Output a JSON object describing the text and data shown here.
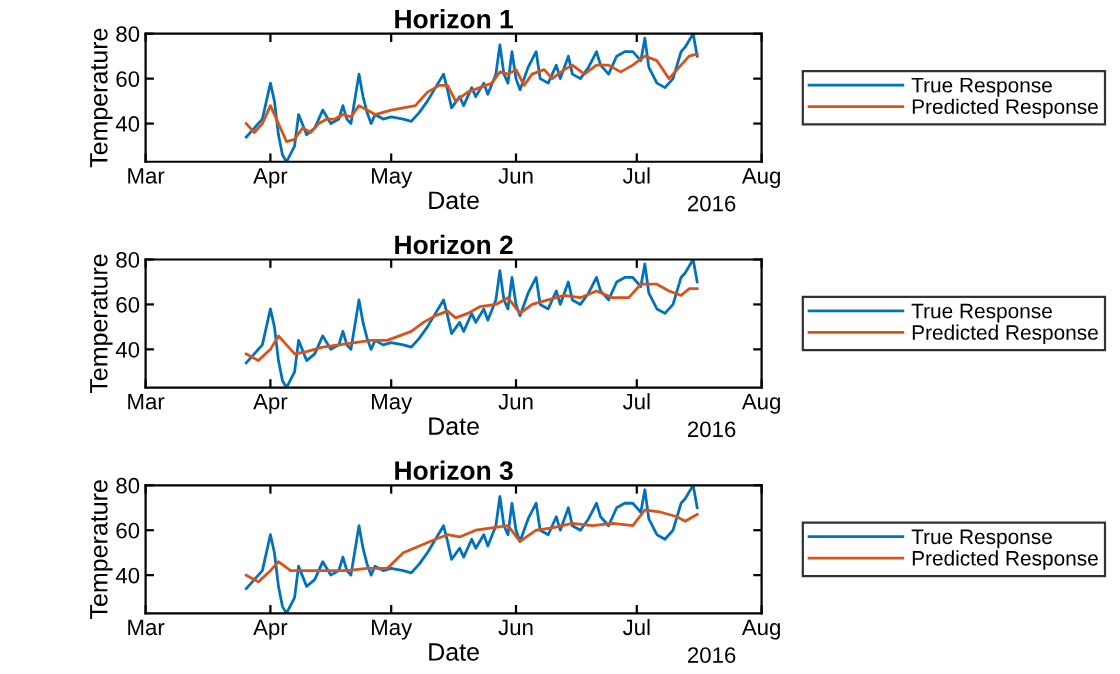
{
  "chart_data": [
    {
      "type": "line",
      "title": "Horizon 1",
      "xlabel": "Date",
      "ylabel": "Temperature",
      "annotations": [
        "2016"
      ],
      "xlim": [
        "2016-03-01",
        "2016-08-01"
      ],
      "xticks": [
        {
          "value": "2016-03-01",
          "label": "Mar"
        },
        {
          "value": "2016-04-01",
          "label": "Apr"
        },
        {
          "value": "2016-05-01",
          "label": "May"
        },
        {
          "value": "2016-06-01",
          "label": "Jun"
        },
        {
          "value": "2016-07-01",
          "label": "Jul"
        },
        {
          "value": "2016-08-01",
          "label": "Aug"
        }
      ],
      "ylim": [
        23,
        80
      ],
      "yticks": [
        40,
        60,
        80
      ],
      "grid": false,
      "legend": "right",
      "series": [
        {
          "name": "True Response",
          "color": "#0072bd",
          "x": [
            "2016-03-26",
            "2016-03-28",
            "2016-03-30",
            "2016-04-01",
            "2016-04-02",
            "2016-04-03",
            "2016-04-04",
            "2016-04-05",
            "2016-04-07",
            "2016-04-08",
            "2016-04-10",
            "2016-04-12",
            "2016-04-14",
            "2016-04-16",
            "2016-04-18",
            "2016-04-19",
            "2016-04-20",
            "2016-04-21",
            "2016-04-23",
            "2016-04-24",
            "2016-04-25",
            "2016-04-26",
            "2016-04-27",
            "2016-04-29",
            "2016-05-01",
            "2016-05-04",
            "2016-05-06",
            "2016-05-08",
            "2016-05-10",
            "2016-05-12",
            "2016-05-14",
            "2016-05-15",
            "2016-05-16",
            "2016-05-18",
            "2016-05-19",
            "2016-05-21",
            "2016-05-22",
            "2016-05-24",
            "2016-05-25",
            "2016-05-27",
            "2016-05-28",
            "2016-05-29",
            "2016-05-30",
            "2016-05-31",
            "2016-06-01",
            "2016-06-02",
            "2016-06-04",
            "2016-06-06",
            "2016-06-07",
            "2016-06-09",
            "2016-06-11",
            "2016-06-12",
            "2016-06-14",
            "2016-06-15",
            "2016-06-17",
            "2016-06-19",
            "2016-06-21",
            "2016-06-22",
            "2016-06-24",
            "2016-06-26",
            "2016-06-28",
            "2016-06-30",
            "2016-07-02",
            "2016-07-03",
            "2016-07-04",
            "2016-07-06",
            "2016-07-08",
            "2016-07-10",
            "2016-07-12",
            "2016-07-13",
            "2016-07-15",
            "2016-07-16"
          ],
          "values": [
            34,
            38,
            42,
            58,
            50,
            35,
            26,
            23,
            30,
            44,
            35,
            38,
            46,
            40,
            42,
            48,
            42,
            40,
            62,
            52,
            45,
            40,
            44,
            42,
            43,
            42,
            41,
            45,
            50,
            56,
            62,
            55,
            47,
            52,
            48,
            56,
            52,
            58,
            53,
            62,
            75,
            62,
            58,
            72,
            60,
            55,
            65,
            72,
            60,
            58,
            66,
            60,
            70,
            62,
            60,
            65,
            72,
            66,
            62,
            70,
            72,
            72,
            68,
            78,
            65,
            58,
            56,
            60,
            72,
            74,
            80,
            70
          ]
        },
        {
          "name": "Predicted Response",
          "color": "#d95319",
          "x": [
            "2016-03-26",
            "2016-03-28",
            "2016-03-30",
            "2016-04-01",
            "2016-04-03",
            "2016-04-05",
            "2016-04-07",
            "2016-04-09",
            "2016-04-11",
            "2016-04-13",
            "2016-04-15",
            "2016-04-17",
            "2016-04-19",
            "2016-04-21",
            "2016-04-23",
            "2016-04-25",
            "2016-04-27",
            "2016-04-29",
            "2016-05-01",
            "2016-05-04",
            "2016-05-07",
            "2016-05-10",
            "2016-05-13",
            "2016-05-15",
            "2016-05-17",
            "2016-05-20",
            "2016-05-23",
            "2016-05-26",
            "2016-05-28",
            "2016-05-30",
            "2016-06-01",
            "2016-06-03",
            "2016-06-05",
            "2016-06-08",
            "2016-06-10",
            "2016-06-13",
            "2016-06-15",
            "2016-06-18",
            "2016-06-21",
            "2016-06-24",
            "2016-06-27",
            "2016-06-30",
            "2016-07-03",
            "2016-07-06",
            "2016-07-09",
            "2016-07-12",
            "2016-07-14",
            "2016-07-16"
          ],
          "values": [
            40,
            36,
            40,
            48,
            40,
            32,
            33,
            38,
            36,
            40,
            42,
            42,
            44,
            43,
            48,
            46,
            44,
            45,
            46,
            47,
            48,
            54,
            57,
            57,
            50,
            54,
            56,
            58,
            63,
            62,
            64,
            57,
            62,
            64,
            60,
            64,
            66,
            62,
            66,
            66,
            63,
            66,
            70,
            68,
            60,
            66,
            70,
            71
          ]
        }
      ]
    },
    {
      "type": "line",
      "title": "Horizon 2",
      "xlabel": "Date",
      "ylabel": "Temperature",
      "annotations": [
        "2016"
      ],
      "xlim": [
        "2016-03-01",
        "2016-08-01"
      ],
      "xticks": [
        {
          "value": "2016-03-01",
          "label": "Mar"
        },
        {
          "value": "2016-04-01",
          "label": "Apr"
        },
        {
          "value": "2016-05-01",
          "label": "May"
        },
        {
          "value": "2016-06-01",
          "label": "Jun"
        },
        {
          "value": "2016-07-01",
          "label": "Jul"
        },
        {
          "value": "2016-08-01",
          "label": "Aug"
        }
      ],
      "ylim": [
        23,
        80
      ],
      "yticks": [
        40,
        60,
        80
      ],
      "grid": false,
      "legend": "right",
      "series": [
        {
          "name": "True Response",
          "color": "#0072bd",
          "x": [
            "2016-03-26",
            "2016-03-28",
            "2016-03-30",
            "2016-04-01",
            "2016-04-02",
            "2016-04-03",
            "2016-04-04",
            "2016-04-05",
            "2016-04-07",
            "2016-04-08",
            "2016-04-10",
            "2016-04-12",
            "2016-04-14",
            "2016-04-16",
            "2016-04-18",
            "2016-04-19",
            "2016-04-20",
            "2016-04-21",
            "2016-04-23",
            "2016-04-24",
            "2016-04-25",
            "2016-04-26",
            "2016-04-27",
            "2016-04-29",
            "2016-05-01",
            "2016-05-04",
            "2016-05-06",
            "2016-05-08",
            "2016-05-10",
            "2016-05-12",
            "2016-05-14",
            "2016-05-15",
            "2016-05-16",
            "2016-05-18",
            "2016-05-19",
            "2016-05-21",
            "2016-05-22",
            "2016-05-24",
            "2016-05-25",
            "2016-05-27",
            "2016-05-28",
            "2016-05-29",
            "2016-05-30",
            "2016-05-31",
            "2016-06-01",
            "2016-06-02",
            "2016-06-04",
            "2016-06-06",
            "2016-06-07",
            "2016-06-09",
            "2016-06-11",
            "2016-06-12",
            "2016-06-14",
            "2016-06-15",
            "2016-06-17",
            "2016-06-19",
            "2016-06-21",
            "2016-06-22",
            "2016-06-24",
            "2016-06-26",
            "2016-06-28",
            "2016-06-30",
            "2016-07-02",
            "2016-07-03",
            "2016-07-04",
            "2016-07-06",
            "2016-07-08",
            "2016-07-10",
            "2016-07-12",
            "2016-07-13",
            "2016-07-15",
            "2016-07-16"
          ],
          "values": [
            34,
            38,
            42,
            58,
            50,
            35,
            26,
            23,
            30,
            44,
            35,
            38,
            46,
            40,
            42,
            48,
            42,
            40,
            62,
            52,
            45,
            40,
            44,
            42,
            43,
            42,
            41,
            45,
            50,
            56,
            62,
            55,
            47,
            52,
            48,
            56,
            52,
            58,
            53,
            62,
            75,
            62,
            58,
            72,
            60,
            55,
            65,
            72,
            60,
            58,
            66,
            60,
            70,
            62,
            60,
            65,
            72,
            66,
            62,
            70,
            72,
            72,
            68,
            78,
            65,
            58,
            56,
            60,
            72,
            74,
            80,
            70
          ]
        },
        {
          "name": "Predicted Response",
          "color": "#d95319",
          "x": [
            "2016-03-26",
            "2016-03-29",
            "2016-04-01",
            "2016-04-03",
            "2016-04-05",
            "2016-04-07",
            "2016-04-10",
            "2016-04-14",
            "2016-04-18",
            "2016-04-22",
            "2016-04-26",
            "2016-04-30",
            "2016-05-03",
            "2016-05-06",
            "2016-05-09",
            "2016-05-12",
            "2016-05-15",
            "2016-05-17",
            "2016-05-20",
            "2016-05-23",
            "2016-05-27",
            "2016-05-30",
            "2016-06-02",
            "2016-06-05",
            "2016-06-09",
            "2016-06-13",
            "2016-06-17",
            "2016-06-21",
            "2016-06-25",
            "2016-06-29",
            "2016-07-02",
            "2016-07-06",
            "2016-07-09",
            "2016-07-12",
            "2016-07-14",
            "2016-07-16"
          ],
          "values": [
            38,
            35,
            40,
            46,
            42,
            38,
            39,
            41,
            42,
            43,
            44,
            44,
            46,
            48,
            52,
            55,
            57,
            54,
            56,
            59,
            60,
            63,
            56,
            60,
            62,
            64,
            63,
            66,
            63,
            63,
            69,
            69,
            66,
            64,
            67,
            67
          ]
        }
      ]
    },
    {
      "type": "line",
      "title": "Horizon 3",
      "xlabel": "Date",
      "ylabel": "Temperature",
      "annotations": [
        "2016"
      ],
      "xlim": [
        "2016-03-01",
        "2016-08-01"
      ],
      "xticks": [
        {
          "value": "2016-03-01",
          "label": "Mar"
        },
        {
          "value": "2016-04-01",
          "label": "Apr"
        },
        {
          "value": "2016-05-01",
          "label": "May"
        },
        {
          "value": "2016-06-01",
          "label": "Jun"
        },
        {
          "value": "2016-07-01",
          "label": "Jul"
        },
        {
          "value": "2016-08-01",
          "label": "Aug"
        }
      ],
      "ylim": [
        23,
        80
      ],
      "yticks": [
        40,
        60,
        80
      ],
      "grid": false,
      "legend": "right",
      "series": [
        {
          "name": "True Response",
          "color": "#0072bd",
          "x": [
            "2016-03-26",
            "2016-03-28",
            "2016-03-30",
            "2016-04-01",
            "2016-04-02",
            "2016-04-03",
            "2016-04-04",
            "2016-04-05",
            "2016-04-07",
            "2016-04-08",
            "2016-04-10",
            "2016-04-12",
            "2016-04-14",
            "2016-04-16",
            "2016-04-18",
            "2016-04-19",
            "2016-04-20",
            "2016-04-21",
            "2016-04-23",
            "2016-04-24",
            "2016-04-25",
            "2016-04-26",
            "2016-04-27",
            "2016-04-29",
            "2016-05-01",
            "2016-05-04",
            "2016-05-06",
            "2016-05-08",
            "2016-05-10",
            "2016-05-12",
            "2016-05-14",
            "2016-05-15",
            "2016-05-16",
            "2016-05-18",
            "2016-05-19",
            "2016-05-21",
            "2016-05-22",
            "2016-05-24",
            "2016-05-25",
            "2016-05-27",
            "2016-05-28",
            "2016-05-29",
            "2016-05-30",
            "2016-05-31",
            "2016-06-01",
            "2016-06-02",
            "2016-06-04",
            "2016-06-06",
            "2016-06-07",
            "2016-06-09",
            "2016-06-11",
            "2016-06-12",
            "2016-06-14",
            "2016-06-15",
            "2016-06-17",
            "2016-06-19",
            "2016-06-21",
            "2016-06-22",
            "2016-06-24",
            "2016-06-26",
            "2016-06-28",
            "2016-06-30",
            "2016-07-02",
            "2016-07-03",
            "2016-07-04",
            "2016-07-06",
            "2016-07-08",
            "2016-07-10",
            "2016-07-12",
            "2016-07-13",
            "2016-07-15",
            "2016-07-16"
          ],
          "values": [
            34,
            38,
            42,
            58,
            50,
            35,
            26,
            23,
            30,
            44,
            35,
            38,
            46,
            40,
            42,
            48,
            42,
            40,
            62,
            52,
            45,
            40,
            44,
            42,
            43,
            42,
            41,
            45,
            50,
            56,
            62,
            55,
            47,
            52,
            48,
            56,
            52,
            58,
            53,
            62,
            75,
            62,
            58,
            72,
            60,
            55,
            65,
            72,
            60,
            58,
            66,
            60,
            70,
            62,
            60,
            65,
            72,
            66,
            62,
            70,
            72,
            72,
            68,
            78,
            65,
            58,
            56,
            60,
            72,
            74,
            80,
            70
          ]
        },
        {
          "name": "Predicted Response",
          "color": "#d95319",
          "x": [
            "2016-03-26",
            "2016-03-29",
            "2016-04-01",
            "2016-04-03",
            "2016-04-06",
            "2016-04-10",
            "2016-04-15",
            "2016-04-20",
            "2016-04-25",
            "2016-04-30",
            "2016-05-04",
            "2016-05-08",
            "2016-05-12",
            "2016-05-15",
            "2016-05-18",
            "2016-05-22",
            "2016-05-26",
            "2016-05-30",
            "2016-06-02",
            "2016-06-06",
            "2016-06-10",
            "2016-06-15",
            "2016-06-20",
            "2016-06-25",
            "2016-06-30",
            "2016-07-03",
            "2016-07-07",
            "2016-07-11",
            "2016-07-13",
            "2016-07-16"
          ],
          "values": [
            40,
            37,
            42,
            46,
            42,
            42,
            42,
            42,
            43,
            43,
            50,
            53,
            56,
            58,
            57,
            60,
            61,
            62,
            55,
            60,
            61,
            63,
            62,
            63,
            62,
            69,
            68,
            66,
            64,
            67
          ]
        }
      ]
    }
  ]
}
